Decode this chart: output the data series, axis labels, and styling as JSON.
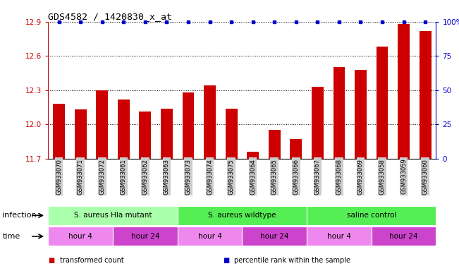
{
  "title": "GDS4582 / 1420830_x_at",
  "samples": [
    "GSM933070",
    "GSM933071",
    "GSM933072",
    "GSM933061",
    "GSM933062",
    "GSM933063",
    "GSM933073",
    "GSM933074",
    "GSM933075",
    "GSM933064",
    "GSM933065",
    "GSM933066",
    "GSM933067",
    "GSM933068",
    "GSM933069",
    "GSM933058",
    "GSM933059",
    "GSM933060"
  ],
  "bar_values": [
    12.18,
    12.13,
    12.3,
    12.22,
    12.11,
    12.14,
    12.28,
    12.34,
    12.14,
    11.76,
    11.95,
    11.87,
    12.33,
    12.5,
    12.48,
    12.68,
    12.88,
    12.82
  ],
  "percentile_values": [
    100,
    100,
    100,
    100,
    100,
    100,
    100,
    100,
    100,
    100,
    100,
    100,
    100,
    100,
    100,
    100,
    100,
    100
  ],
  "ylim_left": [
    11.7,
    12.9
  ],
  "ylim_right": [
    0,
    100
  ],
  "yticks_left": [
    11.7,
    12.0,
    12.3,
    12.6,
    12.9
  ],
  "yticks_right": [
    0,
    25,
    50,
    75,
    100
  ],
  "bar_color": "#CC0000",
  "dot_color": "#0000CC",
  "background_color": "#ffffff",
  "infection_groups": [
    {
      "label": "S. aureus Hla mutant",
      "start": 0,
      "end": 6,
      "color": "#AAFFAA"
    },
    {
      "label": "S. aureus wildtype",
      "start": 6,
      "end": 12,
      "color": "#55EE55"
    },
    {
      "label": "saline control",
      "start": 12,
      "end": 18,
      "color": "#55EE55"
    }
  ],
  "time_groups": [
    {
      "label": "hour 4",
      "start": 0,
      "end": 3,
      "color": "#EE88EE"
    },
    {
      "label": "hour 24",
      "start": 3,
      "end": 6,
      "color": "#CC44CC"
    },
    {
      "label": "hour 4",
      "start": 6,
      "end": 9,
      "color": "#EE88EE"
    },
    {
      "label": "hour 24",
      "start": 9,
      "end": 12,
      "color": "#CC44CC"
    },
    {
      "label": "hour 4",
      "start": 12,
      "end": 15,
      "color": "#EE88EE"
    },
    {
      "label": "hour 24",
      "start": 15,
      "end": 18,
      "color": "#CC44CC"
    }
  ],
  "infection_label": "infection",
  "time_label": "time",
  "legend_items": [
    {
      "color": "#CC0000",
      "label": "transformed count"
    },
    {
      "color": "#0000CC",
      "label": "percentile rank within the sample"
    }
  ],
  "tick_label_bg": "#CCCCCC"
}
